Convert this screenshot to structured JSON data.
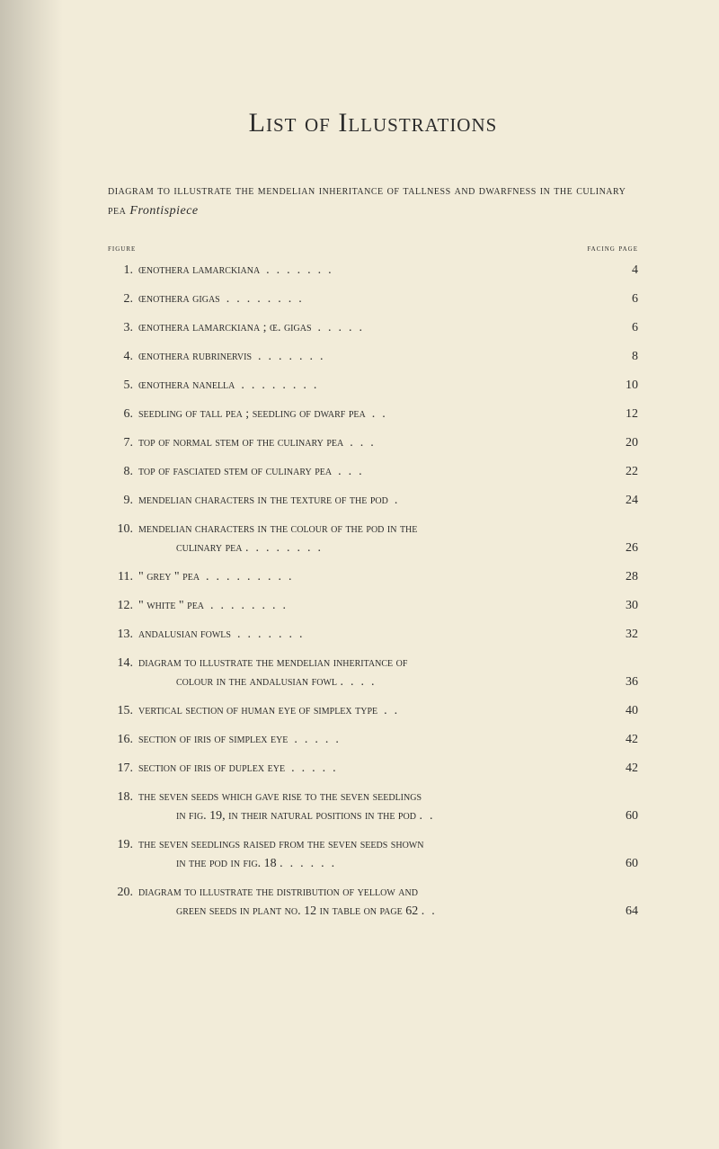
{
  "colors": {
    "background": "#f2ecd9",
    "text": "#2c2c2c",
    "shadow": "rgba(0,0,0,0.18)"
  },
  "typography": {
    "title_fontsize": 30,
    "body_fontsize": 14,
    "colhead_fontsize": 10,
    "font_family": "Georgia, 'Times New Roman', serif"
  },
  "title": "List of Illustrations",
  "intro_sc": "diagram to illustrate the mendelian inheritance of tallness and dwarfness in the culinary pea  ",
  "intro_ital": "Frontispiece",
  "col_left": "figure",
  "col_right": "facing page",
  "entries": [
    {
      "num": "1.",
      "text": "œnothera lamarckiana",
      "dots": ".......",
      "page": "4"
    },
    {
      "num": "2.",
      "text": "œnothera gigas",
      "dots": "........",
      "page": "6"
    },
    {
      "num": "3.",
      "text": "œnothera lamarckiana ; œ. gigas",
      "dots": ".....",
      "page": "6"
    },
    {
      "num": "4.",
      "text": "œnothera rubrinervis",
      "dots": ".......",
      "page": "8"
    },
    {
      "num": "5.",
      "text": "œnothera nanella",
      "dots": "........",
      "page": "10"
    },
    {
      "num": "6.",
      "text": "seedling of tall pea ; seedling of dwarf pea",
      "dots": "..",
      "page": "12"
    },
    {
      "num": "7.",
      "text": "top of normal stem of the culinary pea",
      "dots": "...",
      "page": "20"
    },
    {
      "num": "8.",
      "text": "top of fasciated stem of culinary pea",
      "dots": "...",
      "page": "22"
    },
    {
      "num": "9.",
      "text": "mendelian characters in the texture of the pod",
      "dots": ".",
      "page": "24"
    },
    {
      "num": "10.",
      "multi": true,
      "line1": "mendelian characters in the colour of the pod in the",
      "line2": "culinary pea",
      "dots2": "........",
      "page": "26"
    },
    {
      "num": "11.",
      "text": "\" grey \" pea",
      "dots": ".........",
      "page": "28"
    },
    {
      "num": "12.",
      "text": "\" white \" pea",
      "dots": "........",
      "page": "30"
    },
    {
      "num": "13.",
      "text": "andalusian fowls",
      "dots": ".......",
      "page": "32"
    },
    {
      "num": "14.",
      "multi": true,
      "line1": "diagram to illustrate the mendelian inheritance of",
      "line2": "colour in the andalusian fowl",
      "dots2": "....",
      "page": "36"
    },
    {
      "num": "15.",
      "text": "vertical section of human eye of simplex type",
      "dots": "..",
      "page": "40"
    },
    {
      "num": "16.",
      "text": "section of iris of simplex eye",
      "dots": ".....",
      "page": "42"
    },
    {
      "num": "17.",
      "text": "section of iris of duplex eye",
      "dots": ".....",
      "page": "42"
    },
    {
      "num": "18.",
      "multi": true,
      "line1": "the seven seeds which gave rise to the seven seedlings",
      "line2": "in fig. 19, in their natural positions in the pod",
      "dots2": "..",
      "page": "60"
    },
    {
      "num": "19.",
      "multi": true,
      "line1": "the seven seedlings raised from the seven seeds shown",
      "line2": "in the pod in fig. 18",
      "dots2": "......",
      "page": "60"
    },
    {
      "num": "20.",
      "multi": true,
      "line1": "diagram to illustrate the distribution of yellow and",
      "line2": "green seeds in plant no. 12 in table on page 62",
      "dots2": "..",
      "page": "64"
    }
  ]
}
